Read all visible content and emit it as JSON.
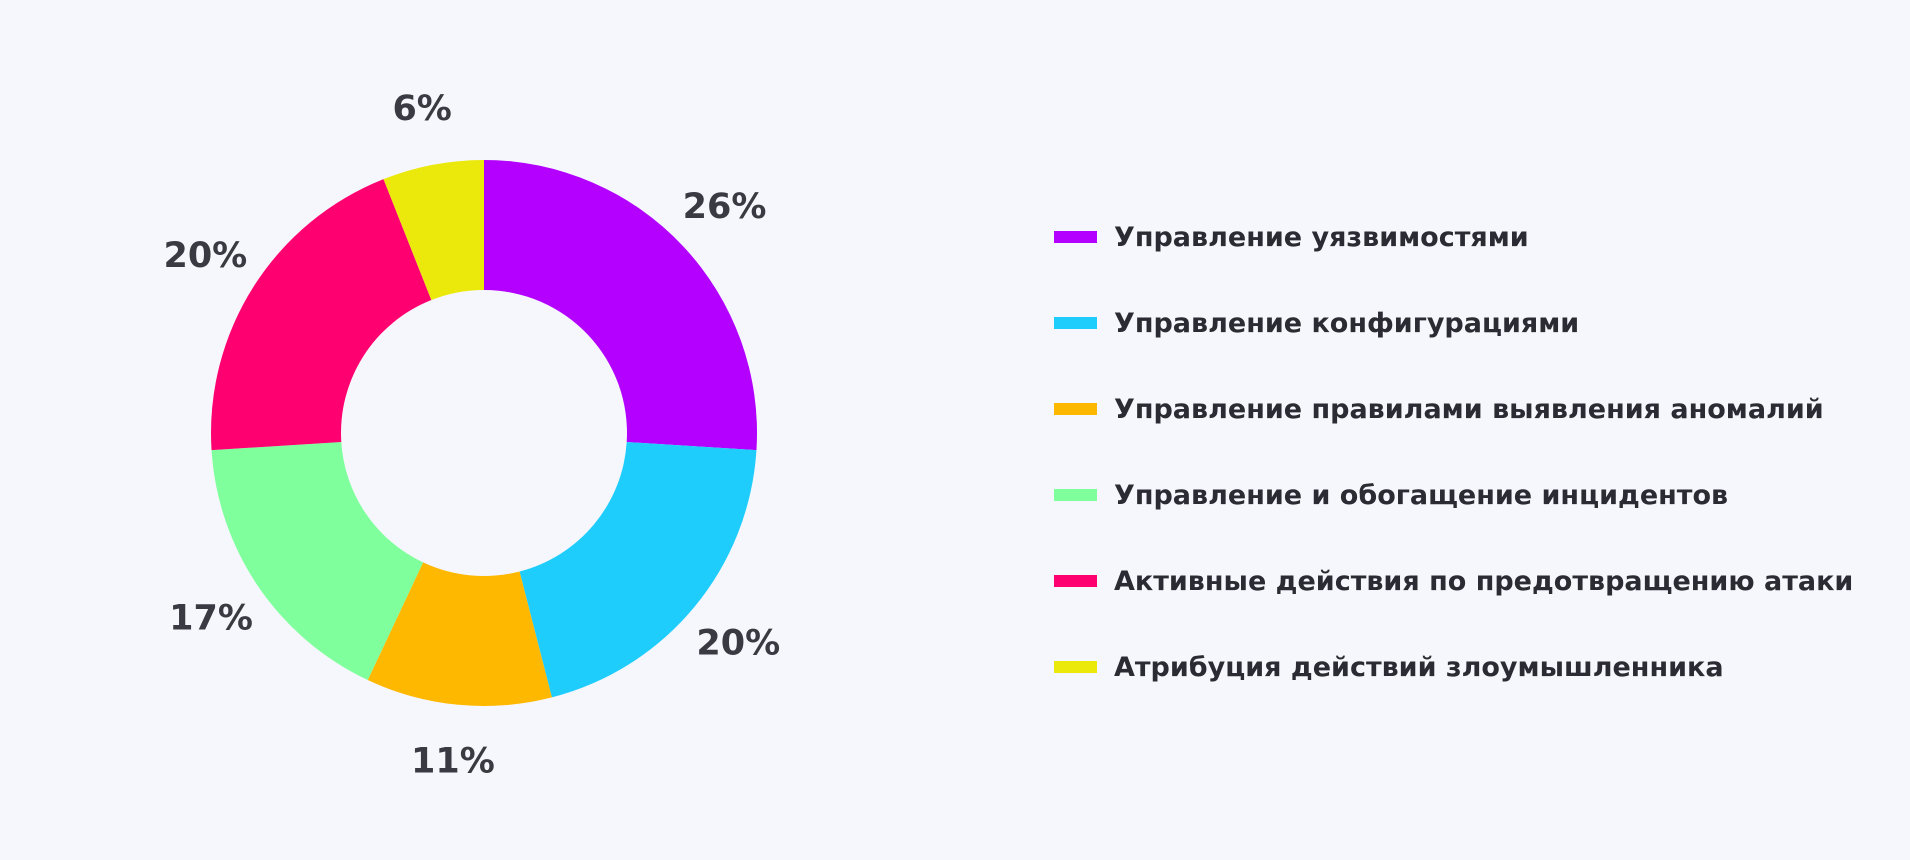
{
  "chart_data": {
    "type": "pie",
    "title": "",
    "legend_position": "right",
    "slices": [
      {
        "label": "Управление уязвимостями",
        "value": 26,
        "value_label": "26%",
        "color": "#b300ff"
      },
      {
        "label": "Управление конфигурациями",
        "value": 20,
        "value_label": "20%",
        "color": "#1ecdfc"
      },
      {
        "label": "Управление правилами выявления аномалий",
        "value": 11,
        "value_label": "11%",
        "color": "#ffb800"
      },
      {
        "label": "Управление и обогащение инцидентов",
        "value": 17,
        "value_label": "17%",
        "color": "#80ff9d"
      },
      {
        "label": "Активные действия по предотвращению атаки",
        "value": 20,
        "value_label": "20%",
        "color": "#ff0070"
      },
      {
        "label": "Атрибуция действий злоумышленника",
        "value": 6,
        "value_label": "6%",
        "color": "#ebe80c"
      }
    ]
  }
}
